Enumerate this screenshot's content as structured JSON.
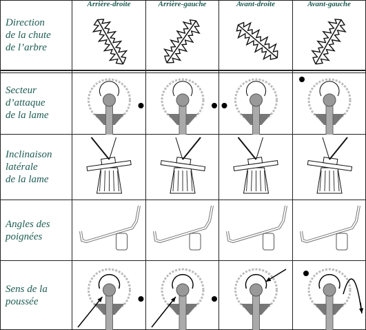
{
  "columns": [
    "Arrière-droite",
    "Arrière-gauche",
    "Avant-droite",
    "Avant-gauche"
  ],
  "rows": [
    {
      "label_lines": [
        "Direction",
        "de la chute",
        "de l’arbre"
      ]
    },
    {
      "label_lines": [
        "Secteur",
        "d’attaque",
        "de la lame"
      ]
    },
    {
      "label_lines": [
        "Inclinaison",
        "latérale",
        "de la lame"
      ]
    },
    {
      "label_lines": [
        "Angles des",
        "poignées"
      ]
    },
    {
      "label_lines": [
        "Sens de la",
        "poussée"
      ]
    }
  ]
}
